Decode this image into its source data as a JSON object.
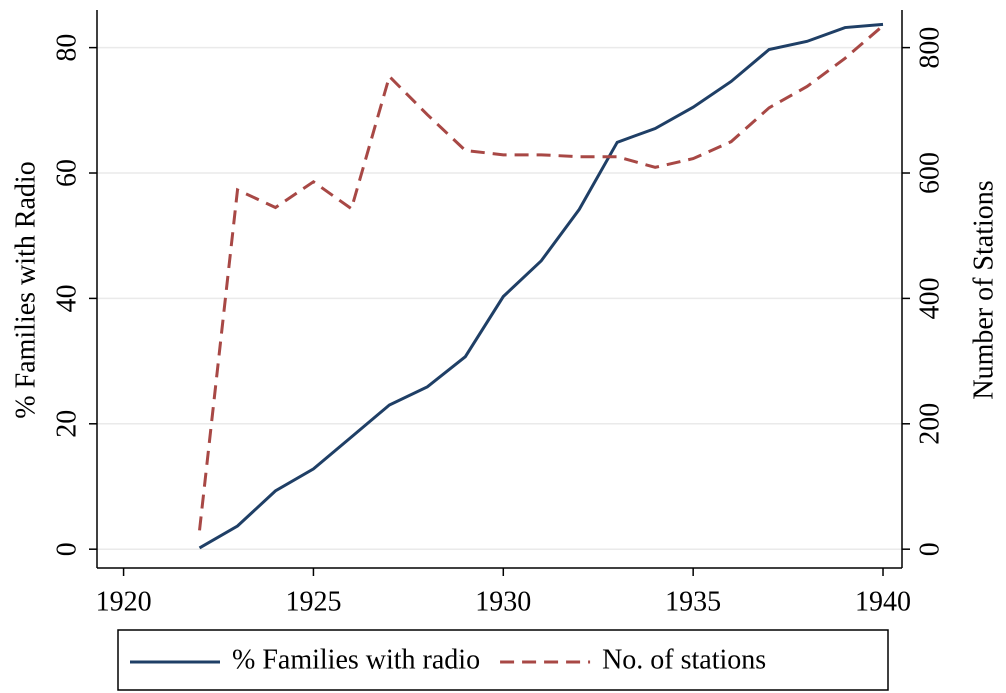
{
  "chart_data": {
    "type": "line",
    "x": [
      1922,
      1923,
      1924,
      1925,
      1926,
      1927,
      1928,
      1929,
      1930,
      1931,
      1932,
      1933,
      1934,
      1935,
      1936,
      1937,
      1938,
      1939,
      1940
    ],
    "series": [
      {
        "name": "% Families with radio",
        "color": "#1f3f66",
        "dash": "solid",
        "axis": "y",
        "values": [
          0.2,
          3.7,
          9.3,
          12.8,
          17.9,
          23,
          25.9,
          30.7,
          40.3,
          46,
          54.2,
          64.9,
          67.1,
          70.5,
          74.6,
          79.7,
          81,
          83.2,
          83.7
        ]
      },
      {
        "name": "No. of stations",
        "color": "#a84845",
        "dash": "dashed",
        "axis": "y2",
        "values": [
          30,
          573,
          545,
          586,
          543,
          754,
          693,
          636,
          629,
          629,
          626,
          626,
          609,
          623,
          650,
          704,
          738,
          783,
          835
        ]
      }
    ],
    "ylabel": "% Families with Radio",
    "y2label": "Number of Stations",
    "xlim": [
      1919.3,
      1940.5
    ],
    "xticks": [
      1920,
      1925,
      1930,
      1935,
      1940
    ],
    "ylim": [
      -3,
      86
    ],
    "yticks": [
      0,
      20,
      40,
      60,
      80
    ],
    "y2lim": [
      -30,
      860
    ],
    "y2ticks": [
      0,
      200,
      400,
      600,
      800
    ],
    "grid": true,
    "legend": "bottom"
  }
}
